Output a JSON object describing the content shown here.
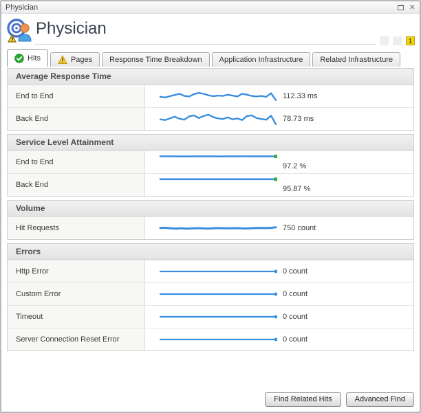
{
  "window": {
    "title": "Physician"
  },
  "header": {
    "title": "Physician",
    "badges": [
      {
        "label": "",
        "type": "empty"
      },
      {
        "label": "",
        "type": "empty"
      },
      {
        "label": "1",
        "type": "alert"
      }
    ]
  },
  "tabs": [
    {
      "label": "Hits",
      "icon": "check-circle-icon",
      "active": true
    },
    {
      "label": "Pages",
      "icon": "warning-triangle-icon",
      "active": false
    },
    {
      "label": "Response Time Breakdown",
      "icon": "",
      "active": false
    },
    {
      "label": "Application Infrastructure",
      "icon": "",
      "active": false
    },
    {
      "label": "Related Infrastructure",
      "icon": "",
      "active": false
    }
  ],
  "sections": [
    {
      "title": "Average Response Time",
      "rows": [
        {
          "label": "End to End",
          "value": "112.33 ms",
          "chart": "art_end_to_end",
          "value_position": "middle"
        },
        {
          "label": "Back End",
          "value": "78.73 ms",
          "chart": "art_back_end",
          "value_position": "middle"
        }
      ]
    },
    {
      "title": "Service Level Attainment",
      "rows": [
        {
          "label": "End to End",
          "value": "97.2 %",
          "chart": "sla_end_to_end",
          "value_position": "low"
        },
        {
          "label": "Back End",
          "value": "95.87 %",
          "chart": "sla_back_end",
          "value_position": "low"
        }
      ]
    },
    {
      "title": "Volume",
      "rows": [
        {
          "label": "Hit Requests",
          "value": "750 count",
          "chart": "volume_hit_requests",
          "value_position": "middle"
        }
      ]
    },
    {
      "title": "Errors",
      "rows": [
        {
          "label": "Http Error",
          "value": "0 count",
          "chart": "errors_http",
          "value_position": "middle"
        },
        {
          "label": "Custom Error",
          "value": "0 count",
          "chart": "errors_custom",
          "value_position": "middle"
        },
        {
          "label": "Timeout",
          "value": "0 count",
          "chart": "errors_timeout",
          "value_position": "middle"
        },
        {
          "label": "Server Connection Reset Error",
          "value": "0 count",
          "chart": "errors_server_reset",
          "value_position": "middle"
        }
      ]
    }
  ],
  "footer": {
    "buttons": [
      {
        "label": "Find Related Hits"
      },
      {
        "label": "Advanced Find"
      }
    ]
  },
  "colors": {
    "spark_line": "#3a8ede",
    "sla_end_marker": "#2eb335",
    "error_end_marker": "#3a8ede",
    "alert_badge": "#f6d30a"
  },
  "chart_data": [
    {
      "id": "art_end_to_end",
      "type": "line",
      "title": "End to End Average Response Time",
      "unit": "ms",
      "current": 112.33,
      "ymin": 85,
      "ymax": 135,
      "stroke_width": 2.4,
      "end_marker": "none",
      "values": [
        108,
        106,
        110,
        114,
        118,
        111,
        109,
        117,
        121,
        118,
        113,
        110,
        112,
        111,
        115,
        112,
        109,
        118,
        115,
        111,
        109,
        111,
        108,
        120,
        97
      ]
    },
    {
      "id": "art_back_end",
      "type": "line",
      "title": "Back End Average Response Time",
      "unit": "ms",
      "current": 78.73,
      "ymin": 55,
      "ymax": 100,
      "stroke_width": 2.4,
      "end_marker": "none",
      "values": [
        76,
        74,
        79,
        84,
        78,
        75,
        85,
        88,
        80,
        86,
        90,
        83,
        79,
        77,
        82,
        76,
        79,
        74,
        86,
        88,
        80,
        77,
        75,
        87,
        62
      ]
    },
    {
      "id": "sla_end_to_end",
      "type": "line",
      "title": "End to End Service Level Attainment",
      "unit": "%",
      "current": 97.2,
      "ymin": 0,
      "ymax": 110,
      "stroke_width": 2.6,
      "end_marker": "green-square",
      "values": [
        97.5,
        97.4,
        97.3,
        96.9,
        96.6,
        96.8,
        97.1,
        97.3,
        97.2,
        97.0,
        96.6,
        96.9,
        97.2,
        97.4,
        97.3,
        97.2,
        97.2,
        97.3,
        97.2,
        97.2
      ]
    },
    {
      "id": "sla_back_end",
      "type": "line",
      "title": "Back End Service Level Attainment",
      "unit": "%",
      "current": 95.87,
      "ymin": 0,
      "ymax": 110,
      "stroke_width": 2.6,
      "end_marker": "green-square",
      "values": [
        95.87,
        95.87,
        95.87,
        95.87,
        95.87,
        95.87,
        95.87,
        95.87,
        95.87,
        95.87,
        95.87,
        95.87,
        95.87,
        95.87,
        95.87,
        95.87,
        95.87,
        95.87,
        95.87,
        95.87
      ]
    },
    {
      "id": "volume_hit_requests",
      "type": "line",
      "title": "Hit Requests Volume",
      "unit": "count",
      "current": 750,
      "ymin": 500,
      "ymax": 1000,
      "stroke_width": 3,
      "end_marker": "none",
      "values": [
        755,
        762,
        745,
        737,
        748,
        734,
        742,
        751,
        744,
        737,
        746,
        753,
        748,
        744,
        750,
        747,
        739,
        746,
        753,
        758,
        753,
        760,
        778
      ]
    },
    {
      "id": "errors_http",
      "type": "line",
      "title": "Http Error",
      "unit": "count",
      "current": 0,
      "ymin": -1,
      "ymax": 1,
      "stroke_width": 2.2,
      "end_marker": "blue-dot",
      "values": [
        0,
        0,
        0,
        0,
        0,
        0,
        0,
        0,
        0,
        0,
        0,
        0,
        0
      ]
    },
    {
      "id": "errors_custom",
      "type": "line",
      "title": "Custom Error",
      "unit": "count",
      "current": 0,
      "ymin": -1,
      "ymax": 1,
      "stroke_width": 2.2,
      "end_marker": "blue-dot",
      "values": [
        0,
        0,
        0,
        0,
        0,
        0,
        0,
        0,
        0,
        0,
        0,
        0,
        0
      ]
    },
    {
      "id": "errors_timeout",
      "type": "line",
      "title": "Timeout",
      "unit": "count",
      "current": 0,
      "ymin": -1,
      "ymax": 1,
      "stroke_width": 2.2,
      "end_marker": "blue-dot",
      "values": [
        0,
        0,
        0,
        0,
        0,
        0,
        0,
        0,
        0,
        0,
        0,
        0,
        0
      ]
    },
    {
      "id": "errors_server_reset",
      "type": "line",
      "title": "Server Connection Reset Error",
      "unit": "count",
      "current": 0,
      "ymin": -1,
      "ymax": 1,
      "stroke_width": 2.2,
      "end_marker": "blue-dot",
      "values": [
        0,
        0,
        0,
        0,
        0,
        0,
        0,
        0,
        0,
        0,
        0,
        0,
        0
      ]
    }
  ]
}
